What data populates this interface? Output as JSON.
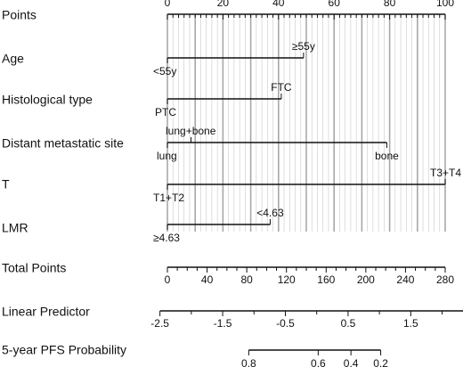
{
  "chart_data": {
    "type": "nomogram",
    "grid": true,
    "rows": [
      {
        "name": "Points",
        "kind": "axis",
        "range": [
          0,
          100
        ],
        "labeled_ticks": [
          0,
          20,
          40,
          60,
          80,
          100
        ],
        "tick_labels": [
          "0",
          "20",
          "40",
          "60",
          "80",
          "100"
        ],
        "minor_step": 2
      },
      {
        "name": "Age",
        "kind": "predictor",
        "levels": [
          {
            "label": "<55y",
            "points": 0,
            "side": "below"
          },
          {
            "label": "≥55y",
            "points": 49,
            "side": "above"
          }
        ]
      },
      {
        "name": "Histological type",
        "kind": "predictor",
        "levels": [
          {
            "label": "PTC",
            "points": 0,
            "side": "below"
          },
          {
            "label": "FTC",
            "points": 41,
            "side": "above"
          }
        ]
      },
      {
        "name": "Distant metastatic site",
        "kind": "predictor",
        "levels": [
          {
            "label": "lung",
            "points": 0,
            "side": "below"
          },
          {
            "label": "lung+bone",
            "points": 8.5,
            "side": "above"
          },
          {
            "label": "bone",
            "points": 79,
            "side": "below"
          }
        ]
      },
      {
        "name": "T",
        "kind": "predictor",
        "levels": [
          {
            "label": "T1+T2",
            "points": 0,
            "side": "below"
          },
          {
            "label": "T3+T4",
            "points": 100,
            "side": "above"
          }
        ]
      },
      {
        "name": "LMR",
        "kind": "predictor",
        "levels": [
          {
            "label": "≥4.63",
            "points": 0,
            "side": "below"
          },
          {
            "label": "<4.63",
            "points": 37,
            "side": "above"
          }
        ]
      },
      {
        "name": "Total Points",
        "kind": "axis",
        "range": [
          0,
          280
        ],
        "labeled_ticks": [
          0,
          40,
          80,
          120,
          160,
          200,
          240,
          280
        ],
        "tick_labels": [
          "0",
          "40",
          "80",
          "120",
          "160",
          "200",
          "240",
          "280"
        ],
        "minor_step": 10
      },
      {
        "name": "Linear Predictor",
        "kind": "axis",
        "range": [
          -2.5,
          2.5
        ],
        "total_points_at_range": [
          -7.5,
          308.5
        ],
        "labeled_ticks": [
          -2.5,
          -1.5,
          -0.5,
          0.5,
          1.5,
          2.5
        ],
        "tick_labels": [
          "-2.5",
          "-1.5",
          "-0.5",
          "0.5",
          "1.5",
          "2.5"
        ],
        "minor_step": 0.5
      },
      {
        "name": "5-year PFS Probability",
        "kind": "axis",
        "labeled_ticks": [
          0.8,
          0.6,
          0.4,
          0.2
        ],
        "tick_labels": [
          "0.8",
          "0.6",
          "0.4",
          "0.2"
        ],
        "total_points_at_ticks": [
          82,
          152,
          185,
          215
        ]
      }
    ]
  }
}
